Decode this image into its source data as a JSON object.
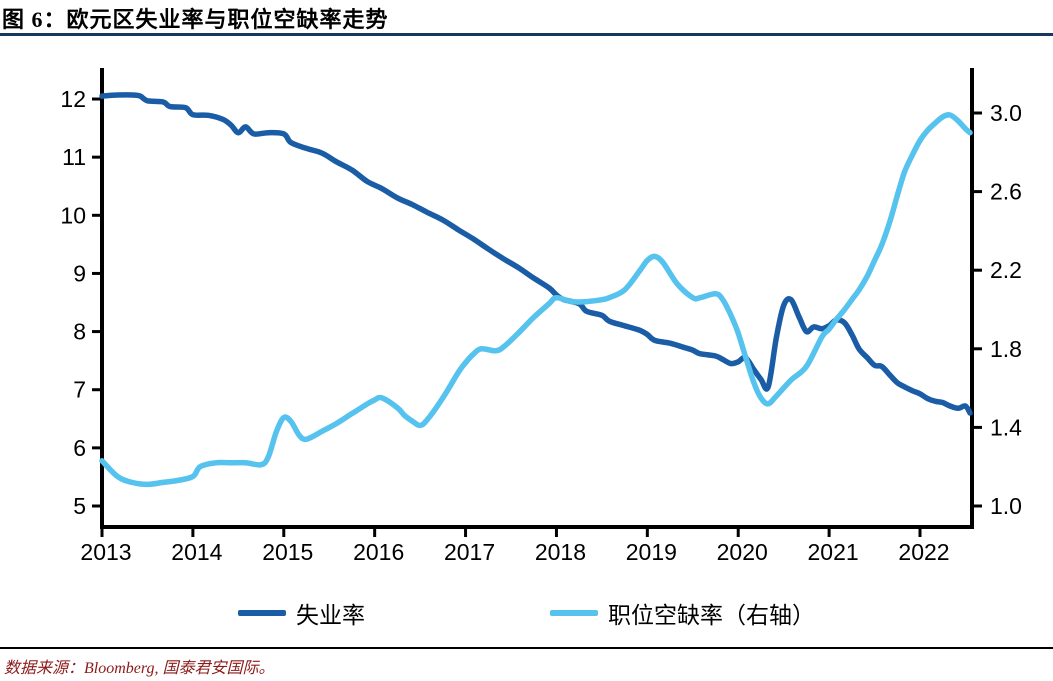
{
  "title": "图 6：欧元区失业率与职位空缺率走势",
  "source": "数据来源：Bloomberg, 国泰君安国际。",
  "colors": {
    "unemployment_line": "#1A5DA6",
    "vacancy_line": "#56C2EE",
    "title_underline": "#17375E",
    "source_text": "#8B1A1A",
    "axis": "#000000"
  },
  "chart_data": {
    "type": "line",
    "title": "欧元区失业率与职位空缺率走势",
    "legend": [
      "失业率",
      "职位空缺率（右轴）"
    ],
    "legend_position": "bottom",
    "grid": false,
    "x_axis": {
      "ticks": [
        2013,
        2014,
        2015,
        2016,
        2017,
        2018,
        2019,
        2020,
        2021,
        2022
      ],
      "range": [
        2013,
        2022.58
      ]
    },
    "left_axis": {
      "ticks": [
        5,
        6,
        7,
        8,
        9,
        10,
        11,
        12
      ],
      "range": [
        5,
        12.5
      ],
      "series": "失业率"
    },
    "right_axis": {
      "ticks": [
        1.0,
        1.4,
        1.8,
        2.2,
        2.6,
        3.0
      ],
      "range": [
        1.0,
        3.0
      ],
      "series": "职位空缺率"
    },
    "series": [
      {
        "name": "失业率",
        "axis": "left",
        "color": "#1A5DA6",
        "x": [
          2013.0,
          2013.17,
          2013.33,
          2013.42,
          2013.5,
          2013.67,
          2013.75,
          2013.92,
          2014.0,
          2014.17,
          2014.33,
          2014.42,
          2014.5,
          2014.58,
          2014.67,
          2014.83,
          2015.0,
          2015.08,
          2015.25,
          2015.42,
          2015.58,
          2015.75,
          2015.92,
          2016.08,
          2016.25,
          2016.42,
          2016.58,
          2016.75,
          2016.92,
          2017.08,
          2017.25,
          2017.42,
          2017.58,
          2017.75,
          2017.92,
          2018.0,
          2018.08,
          2018.25,
          2018.33,
          2018.5,
          2018.58,
          2018.75,
          2018.92,
          2019.0,
          2019.08,
          2019.25,
          2019.42,
          2019.5,
          2019.58,
          2019.75,
          2019.83,
          2019.92,
          2020.0,
          2020.08,
          2020.17,
          2020.25,
          2020.33,
          2020.42,
          2020.5,
          2020.58,
          2020.67,
          2020.75,
          2020.83,
          2020.92,
          2021.0,
          2021.08,
          2021.17,
          2021.25,
          2021.33,
          2021.42,
          2021.5,
          2021.58,
          2021.67,
          2021.75,
          2021.83,
          2021.92,
          2022.0,
          2022.08,
          2022.17,
          2022.25,
          2022.33,
          2022.42,
          2022.5,
          2022.55
        ],
        "values": [
          12.05,
          12.07,
          12.07,
          12.05,
          11.97,
          11.95,
          11.87,
          11.85,
          11.73,
          11.72,
          11.65,
          11.55,
          11.42,
          11.52,
          11.4,
          11.42,
          11.4,
          11.25,
          11.15,
          11.07,
          10.92,
          10.78,
          10.58,
          10.46,
          10.3,
          10.18,
          10.05,
          9.92,
          9.75,
          9.6,
          9.42,
          9.25,
          9.1,
          8.92,
          8.75,
          8.63,
          8.55,
          8.48,
          8.35,
          8.28,
          8.18,
          8.1,
          8.02,
          7.95,
          7.85,
          7.8,
          7.72,
          7.68,
          7.62,
          7.58,
          7.52,
          7.45,
          7.48,
          7.55,
          7.35,
          7.18,
          7.05,
          7.9,
          8.45,
          8.55,
          8.25,
          8.0,
          8.08,
          8.05,
          8.1,
          8.2,
          8.15,
          7.95,
          7.7,
          7.55,
          7.42,
          7.4,
          7.25,
          7.12,
          7.05,
          6.98,
          6.93,
          6.85,
          6.8,
          6.78,
          6.72,
          6.68,
          6.72,
          6.6
        ]
      },
      {
        "name": "职位空缺率（右轴）",
        "axis": "right",
        "color": "#56C2EE",
        "x": [
          2013.0,
          2013.17,
          2013.33,
          2013.5,
          2013.67,
          2013.83,
          2014.0,
          2014.08,
          2014.25,
          2014.42,
          2014.58,
          2014.75,
          2014.83,
          2014.92,
          2015.0,
          2015.08,
          2015.17,
          2015.25,
          2015.42,
          2015.58,
          2015.75,
          2015.92,
          2016.0,
          2016.08,
          2016.25,
          2016.33,
          2016.42,
          2016.5,
          2016.58,
          2016.75,
          2016.92,
          2017.0,
          2017.08,
          2017.17,
          2017.33,
          2017.42,
          2017.58,
          2017.75,
          2017.92,
          2018.0,
          2018.17,
          2018.33,
          2018.5,
          2018.58,
          2018.75,
          2018.92,
          2019.0,
          2019.08,
          2019.17,
          2019.33,
          2019.5,
          2019.58,
          2019.75,
          2019.83,
          2019.92,
          2020.0,
          2020.08,
          2020.17,
          2020.25,
          2020.33,
          2020.42,
          2020.58,
          2020.75,
          2020.92,
          2021.0,
          2021.08,
          2021.17,
          2021.25,
          2021.33,
          2021.42,
          2021.5,
          2021.58,
          2021.67,
          2021.75,
          2021.83,
          2021.92,
          2022.0,
          2022.08,
          2022.17,
          2022.25,
          2022.33,
          2022.42,
          2022.5,
          2022.55
        ],
        "values": [
          1.23,
          1.15,
          1.12,
          1.11,
          1.12,
          1.13,
          1.15,
          1.2,
          1.22,
          1.22,
          1.22,
          1.21,
          1.25,
          1.38,
          1.45,
          1.43,
          1.36,
          1.34,
          1.38,
          1.42,
          1.47,
          1.52,
          1.54,
          1.55,
          1.5,
          1.46,
          1.43,
          1.41,
          1.44,
          1.55,
          1.68,
          1.73,
          1.77,
          1.8,
          1.79,
          1.81,
          1.88,
          1.96,
          2.03,
          2.06,
          2.04,
          2.04,
          2.05,
          2.06,
          2.1,
          2.2,
          2.25,
          2.27,
          2.24,
          2.13,
          2.06,
          2.06,
          2.08,
          2.05,
          1.97,
          1.88,
          1.76,
          1.63,
          1.55,
          1.52,
          1.56,
          1.64,
          1.71,
          1.86,
          1.9,
          1.95,
          2.0,
          2.05,
          2.1,
          2.17,
          2.25,
          2.33,
          2.45,
          2.58,
          2.7,
          2.79,
          2.86,
          2.91,
          2.95,
          2.98,
          2.99,
          2.96,
          2.92,
          2.9
        ]
      }
    ]
  }
}
